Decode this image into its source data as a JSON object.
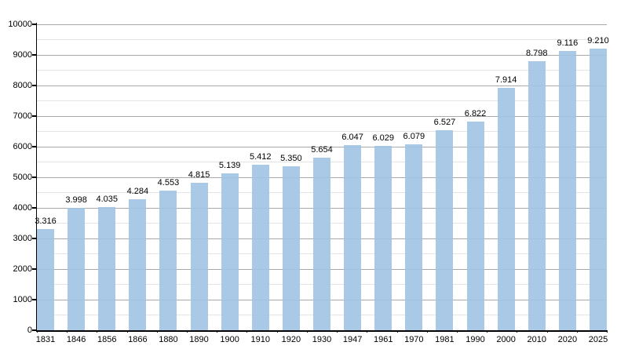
{
  "chart_data": {
    "type": "bar",
    "title": "",
    "xlabel": "",
    "ylabel": "",
    "categories": [
      "1831",
      "1846",
      "1856",
      "1866",
      "1880",
      "1890",
      "1900",
      "1910",
      "1920",
      "1930",
      "1947",
      "1961",
      "1970",
      "1981",
      "1990",
      "2000",
      "2010",
      "2020",
      "2025"
    ],
    "values": [
      3316,
      3998,
      4035,
      4284,
      4553,
      4815,
      5139,
      5412,
      5350,
      5654,
      6047,
      6029,
      6079,
      6527,
      6822,
      7914,
      8798,
      9116,
      9210
    ],
    "value_labels": [
      "3.316",
      "3.998",
      "4.035",
      "4.284",
      "4.553",
      "4.815",
      "5.139",
      "5.412",
      "5.350",
      "5.654",
      "6.047",
      "6.029",
      "6.079",
      "6.527",
      "6.822",
      "7.914",
      "8.798",
      "9.116",
      "9.210"
    ],
    "y_tick_labels": [
      "0",
      "1000",
      "2000",
      "3000",
      "4000",
      "5000",
      "6000",
      "7000",
      "8000",
      "9000",
      "10000"
    ],
    "ylim": [
      0,
      10000
    ],
    "y_major_step": 1000,
    "y_minor_step": 500,
    "grid": true,
    "legend": "none",
    "colors": {
      "bar": "#abc9e4",
      "bar_translucent": "rgba(160, 195, 227, 0.9)",
      "major_grid": "#a8a8a8",
      "minor_grid": "#e4e4e4",
      "axis": "#000000",
      "text": "#000000",
      "background": "#ffffff"
    }
  }
}
